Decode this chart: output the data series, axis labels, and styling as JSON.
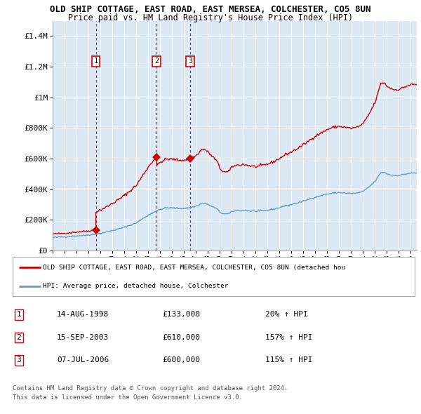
{
  "title": "OLD SHIP COTTAGE, EAST ROAD, EAST MERSEA, COLCHESTER, CO5 8UN",
  "subtitle": "Price paid vs. HM Land Registry's House Price Index (HPI)",
  "xlim": [
    1995.0,
    2025.5
  ],
  "ylim": [
    0,
    1500000
  ],
  "yticks": [
    0,
    200000,
    400000,
    600000,
    800000,
    1000000,
    1200000,
    1400000
  ],
  "ytick_labels": [
    "£0",
    "£200K",
    "£400K",
    "£600K",
    "£800K",
    "£1M",
    "£1.2M",
    "£1.4M"
  ],
  "background_color": "#dce9f5",
  "grid_color": "#ffffff",
  "hpi_color": "#6699cc",
  "price_color": "#cc0000",
  "transactions": [
    {
      "num": 1,
      "year": 1998.62,
      "price": 133000,
      "label": "1"
    },
    {
      "num": 2,
      "year": 2003.71,
      "price": 610000,
      "label": "2"
    },
    {
      "num": 3,
      "year": 2006.52,
      "price": 600000,
      "label": "3"
    }
  ],
  "legend_line1": "OLD SHIP COTTAGE, EAST ROAD, EAST MERSEA, COLCHESTER, CO5 8UN (detached hou",
  "legend_line2": "HPI: Average price, detached house, Colchester",
  "table_rows": [
    {
      "num": "1",
      "date": "14-AUG-1998",
      "price": "£133,000",
      "hpi": "20% ↑ HPI"
    },
    {
      "num": "2",
      "date": "15-SEP-2003",
      "price": "£610,000",
      "hpi": "157% ↑ HPI"
    },
    {
      "num": "3",
      "date": "07-JUL-2006",
      "price": "£600,000",
      "hpi": "115% ↑ HPI"
    }
  ],
  "footnote1": "Contains HM Land Registry data © Crown copyright and database right 2024.",
  "footnote2": "This data is licensed under the Open Government Licence v3.0."
}
